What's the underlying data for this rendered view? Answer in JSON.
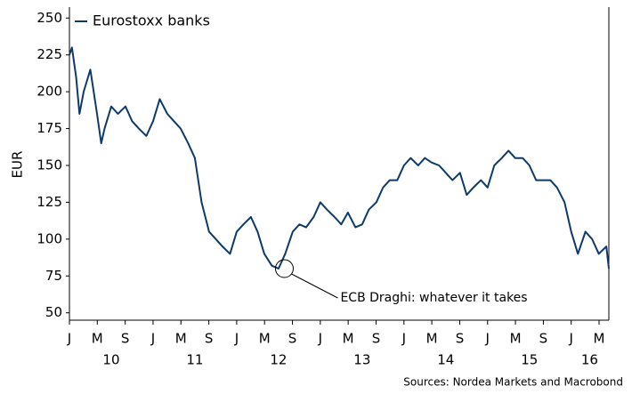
{
  "chart_data": {
    "type": "line",
    "y_label": "EUR",
    "source": "Sources: Nordea Markets and Macrobond",
    "series": [
      {
        "name": "Eurostoxx banks",
        "color": "#0d3a6b",
        "x": [
          2010.0,
          2010.03,
          2010.08,
          2010.12,
          2010.17,
          2010.25,
          2010.33,
          2010.38,
          2010.42,
          2010.5,
          2010.58,
          2010.67,
          2010.75,
          2010.83,
          2010.92,
          2011.0,
          2011.08,
          2011.17,
          2011.25,
          2011.33,
          2011.42,
          2011.5,
          2011.58,
          2011.67,
          2011.75,
          2011.83,
          2011.92,
          2012.0,
          2012.08,
          2012.17,
          2012.25,
          2012.33,
          2012.42,
          2012.5,
          2012.58,
          2012.67,
          2012.75,
          2012.83,
          2012.92,
          2013.0,
          2013.08,
          2013.17,
          2013.25,
          2013.33,
          2013.42,
          2013.5,
          2013.58,
          2013.67,
          2013.75,
          2013.83,
          2013.92,
          2014.0,
          2014.08,
          2014.17,
          2014.25,
          2014.33,
          2014.42,
          2014.5,
          2014.58,
          2014.67,
          2014.75,
          2014.83,
          2014.92,
          2015.0,
          2015.08,
          2015.17,
          2015.25,
          2015.33,
          2015.42,
          2015.5,
          2015.58,
          2015.67,
          2015.75,
          2015.83,
          2015.92,
          2016.0,
          2016.08,
          2016.17,
          2016.25,
          2016.33,
          2016.42,
          2016.45
        ],
        "values": [
          225,
          230,
          210,
          185,
          200,
          215,
          185,
          165,
          175,
          190,
          185,
          190,
          180,
          175,
          170,
          180,
          195,
          185,
          180,
          175,
          165,
          155,
          125,
          105,
          100,
          95,
          90,
          105,
          110,
          115,
          105,
          90,
          82,
          80,
          90,
          105,
          110,
          108,
          115,
          125,
          120,
          115,
          110,
          118,
          108,
          110,
          120,
          125,
          135,
          140,
          140,
          150,
          155,
          150,
          155,
          152,
          150,
          145,
          140,
          145,
          130,
          135,
          140,
          135,
          150,
          155,
          160,
          155,
          155,
          150,
          140,
          140,
          140,
          135,
          125,
          105,
          90,
          105,
          100,
          90,
          95,
          80
        ]
      }
    ],
    "annotation": {
      "text": "ECB Draghi: whatever it takes",
      "x": 2012.57,
      "y": 80
    },
    "xlim": [
      2010,
      2016.45
    ],
    "ylim": [
      45,
      255
    ],
    "yticks": [
      50,
      75,
      100,
      125,
      150,
      175,
      200,
      225,
      250
    ],
    "xticks": [
      {
        "value": 2010.0,
        "label": "J"
      },
      {
        "value": 2010.333,
        "label": "M"
      },
      {
        "value": 2010.667,
        "label": "S"
      },
      {
        "value": 2011.0,
        "label": "J"
      },
      {
        "value": 2011.333,
        "label": "M"
      },
      {
        "value": 2011.667,
        "label": "S"
      },
      {
        "value": 2012.0,
        "label": "J"
      },
      {
        "value": 2012.333,
        "label": "M"
      },
      {
        "value": 2012.667,
        "label": "S"
      },
      {
        "value": 2013.0,
        "label": "J"
      },
      {
        "value": 2013.333,
        "label": "M"
      },
      {
        "value": 2013.667,
        "label": "S"
      },
      {
        "value": 2014.0,
        "label": "J"
      },
      {
        "value": 2014.333,
        "label": "M"
      },
      {
        "value": 2014.667,
        "label": "S"
      },
      {
        "value": 2015.0,
        "label": "J"
      },
      {
        "value": 2015.333,
        "label": "M"
      },
      {
        "value": 2015.667,
        "label": "S"
      },
      {
        "value": 2016.0,
        "label": "J"
      },
      {
        "value": 2016.333,
        "label": "M"
      }
    ],
    "year_labels": [
      {
        "value": 2010.5,
        "label": "10"
      },
      {
        "value": 2011.5,
        "label": "11"
      },
      {
        "value": 2012.5,
        "label": "12"
      },
      {
        "value": 2013.5,
        "label": "13"
      },
      {
        "value": 2014.5,
        "label": "14"
      },
      {
        "value": 2015.5,
        "label": "15"
      },
      {
        "value": 2016.22,
        "label": "16"
      }
    ]
  }
}
